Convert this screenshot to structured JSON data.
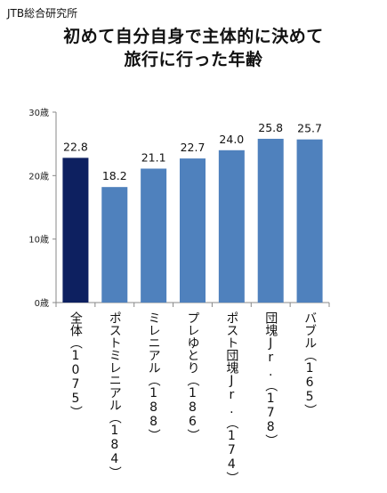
{
  "source": "JTB総合研究所",
  "title_line1": "初めて自分自身で主体的に決めて",
  "title_line2": "旅行に行った年齢",
  "colors": {
    "highlight": "#0d2060",
    "bar": "#4f81bd",
    "axis": "#888888"
  },
  "chart_data": {
    "type": "bar",
    "title": "初めて自分自身で主体的に決めて旅行に行った年齢",
    "categories": [
      "全体（1075）",
      "ポストミレニアル（184）",
      "ミレニアル（188）",
      "プレゆとり（186）",
      "ポスト団塊Jr.（174）",
      "団塊Jr.（178）",
      "バブル（165）"
    ],
    "values": [
      22.8,
      18.2,
      21.1,
      22.7,
      24.0,
      25.8,
      25.7
    ],
    "value_labels": [
      "22.8",
      "18.2",
      "21.1",
      "22.7",
      "24.0",
      "25.8",
      "25.7"
    ],
    "y_ticks": [
      "0歳",
      "10歳",
      "20歳",
      "30歳"
    ],
    "ylim": [
      0,
      30
    ],
    "grid": false,
    "legend": "none"
  }
}
